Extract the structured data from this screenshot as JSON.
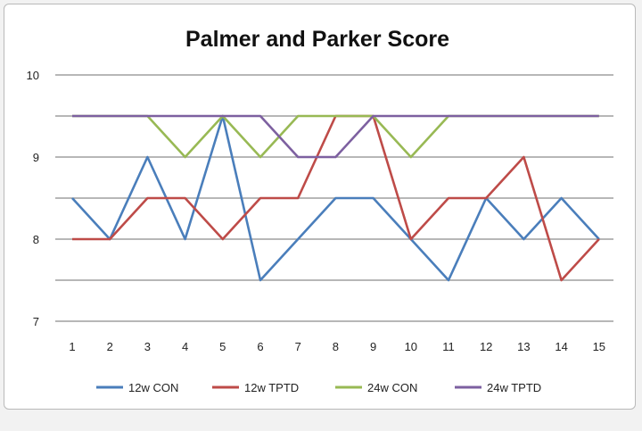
{
  "chart_data": {
    "type": "line",
    "title": "Palmer and Parker Score",
    "xlabel": "",
    "ylabel": "",
    "x": [
      1,
      2,
      3,
      4,
      5,
      6,
      7,
      8,
      9,
      10,
      11,
      12,
      13,
      14,
      15
    ],
    "ylim": [
      7,
      10
    ],
    "y_ticks": [
      "7",
      "8",
      "9",
      "10"
    ],
    "grid": true,
    "legend_position": "bottom",
    "series": [
      {
        "name": "12w CON",
        "color": "#4a7ebb",
        "values": [
          8.5,
          8.0,
          9.0,
          8.0,
          9.5,
          7.5,
          8.0,
          8.5,
          8.5,
          8.0,
          7.5,
          8.5,
          8.0,
          8.5,
          8.0
        ]
      },
      {
        "name": "12w TPTD",
        "color": "#be4b48",
        "values": [
          8.0,
          8.0,
          8.5,
          8.5,
          8.0,
          8.5,
          8.5,
          9.5,
          9.5,
          8.0,
          8.5,
          8.5,
          9.0,
          7.5,
          8.0
        ]
      },
      {
        "name": "24w CON",
        "color": "#98b954",
        "values": [
          9.5,
          9.5,
          9.5,
          9.0,
          9.5,
          9.0,
          9.5,
          9.5,
          9.5,
          9.0,
          9.5,
          9.5,
          9.5,
          9.5,
          9.5
        ]
      },
      {
        "name": "24w TPTD",
        "color": "#7d60a0",
        "values": [
          9.5,
          9.5,
          9.5,
          9.5,
          9.5,
          9.5,
          9.0,
          9.0,
          9.5,
          9.5,
          9.5,
          9.5,
          9.5,
          9.5,
          9.5
        ]
      }
    ]
  }
}
